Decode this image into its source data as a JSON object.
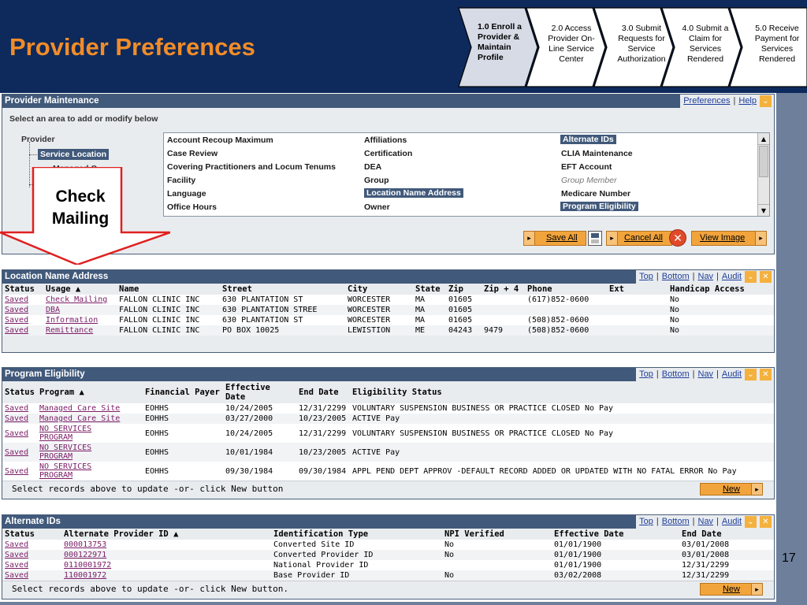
{
  "header": {
    "title": "Provider Preferences",
    "steps": [
      "1.0 Enroll a Provider & Maintain Profile",
      "2.0 Access Provider On-Line Service Center",
      "3.0 Submit Requests for Service Authorization",
      "4.0 Submit a Claim for Services Rendered",
      "5.0 Receive Payment for Services Rendered"
    ]
  },
  "provider_maintenance": {
    "title": "Provider Maintenance",
    "links": [
      "Preferences",
      "Help"
    ],
    "instruction": "Select an area to add or modify below",
    "tree": {
      "root": "Provider",
      "selected": "Service Location",
      "partial_child": "Managed C",
      "partial_sibling": "P"
    },
    "areas_col1": [
      "Account Recoup Maximum",
      "Case Review",
      "Covering Practitioners and Locum Tenums",
      "Facility",
      "Language",
      "Office Hours"
    ],
    "areas_col2": [
      "Affiliations",
      "Certification",
      "DEA",
      "Group",
      "Location Name Address",
      "Owner"
    ],
    "areas_col3": [
      "Alternate IDs",
      "CLIA Maintenance",
      "EFT Account",
      "Group Member",
      "Medicare Number",
      "Program Eligibility"
    ],
    "buttons": {
      "save": "Save All",
      "cancel": "Cancel All",
      "view": "View Image"
    }
  },
  "callout": {
    "line1": "Check",
    "line2": "Mailing"
  },
  "location_name_address": {
    "title": "Location Name Address",
    "links": [
      "Top",
      "Bottom",
      "Nav",
      "Audit"
    ],
    "columns": [
      "Status",
      "Usage ▲",
      "Name",
      "Street",
      "City",
      "State",
      "Zip",
      "Zip + 4",
      "Phone",
      "Ext",
      "Handicap Access"
    ],
    "rows": [
      [
        "Saved",
        "Check Mailing",
        "FALLON CLINIC INC",
        "630 PLANTATION ST",
        "WORCESTER",
        "MA",
        "01605",
        "",
        "(617)852-0600",
        "",
        "No"
      ],
      [
        "Saved",
        "DBA",
        "FALLON CLINIC INC",
        "630 PLANTATION STREE",
        "WORCESTER",
        "MA",
        "01605",
        "",
        "",
        "",
        "No"
      ],
      [
        "Saved",
        "Information",
        "FALLON CLINIC INC",
        "630 PLANTATION ST",
        "WORCESTER",
        "MA",
        "01605",
        "",
        "(508)852-0600",
        "",
        "No"
      ],
      [
        "Saved",
        "Remittance",
        "FALLON CLINIC INC",
        "PO BOX 10025",
        "LEWISTION",
        "ME",
        "04243",
        "9479",
        "(508)852-0600",
        "",
        "No"
      ]
    ]
  },
  "program_eligibility": {
    "title": "Program Eligibility",
    "links": [
      "Top",
      "Bottom",
      "Nav",
      "Audit"
    ],
    "columns": [
      "Status",
      "Program ▲",
      "Financial Payer",
      "Effective Date",
      "End Date",
      "Eligibility Status"
    ],
    "rows": [
      [
        "Saved",
        "Managed Care Site",
        "EOHHS",
        "10/24/2005",
        "12/31/2299",
        "VOLUNTARY SUSPENSION BUSINESS OR PRACTICE CLOSED No Pay"
      ],
      [
        "Saved",
        "Managed Care Site",
        "EOHHS",
        "03/27/2000",
        "10/23/2005",
        "ACTIVE Pay"
      ],
      [
        "Saved",
        "NO SERVICES PROGRAM",
        "EOHHS",
        "10/24/2005",
        "12/31/2299",
        "VOLUNTARY SUSPENSION BUSINESS OR PRACTICE CLOSED No Pay"
      ],
      [
        "Saved",
        "NO SERVICES PROGRAM",
        "EOHHS",
        "10/01/1984",
        "10/23/2005",
        "ACTIVE Pay"
      ],
      [
        "Saved",
        "NO SERVICES PROGRAM",
        "EOHHS",
        "09/30/1984",
        "09/30/1984",
        "APPL PEND DEPT APPROV -DEFAULT RECORD ADDED OR UPDATED WITH NO FATAL ERROR No Pay"
      ]
    ],
    "footer": "Select records above to update -or- click New button",
    "new_label": "New"
  },
  "alternate_ids": {
    "title": "Alternate IDs",
    "links": [
      "Top",
      "Bottom",
      "Nav",
      "Audit"
    ],
    "columns": [
      "Status",
      "Alternate Provider ID ▲",
      "Identification Type",
      "NPI Verified",
      "Effective Date",
      "End Date"
    ],
    "rows": [
      [
        "Saved",
        "000013753",
        "Converted Site ID",
        "No",
        "01/01/1900",
        "03/01/2008"
      ],
      [
        "Saved",
        "000122971",
        "Converted Provider ID",
        "No",
        "01/01/1900",
        "03/01/2008"
      ],
      [
        "Saved",
        "0110001972",
        "National Provider ID",
        "",
        "01/01/1900",
        "12/31/2299"
      ],
      [
        "Saved",
        "110001972",
        "Base Provider ID",
        "No",
        "03/02/2008",
        "12/31/2299"
      ]
    ],
    "footer": "Select records above to update -or- click New button.",
    "new_label": "New"
  },
  "page_number": "17"
}
